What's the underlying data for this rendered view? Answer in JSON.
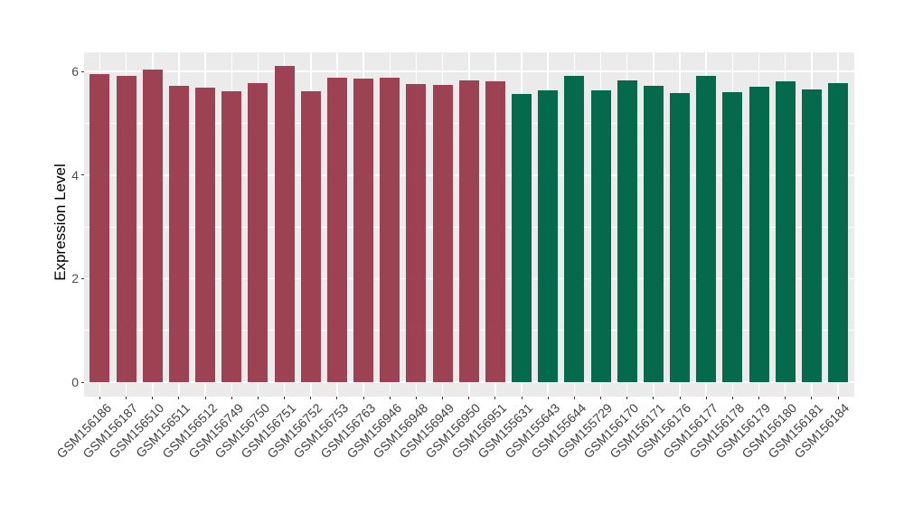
{
  "chart_data": {
    "type": "bar",
    "title": "",
    "xlabel": "",
    "ylabel": "Expression Level",
    "legend_position": "none",
    "grid": true,
    "categories": [
      "GSM156186",
      "GSM156187",
      "GSM156510",
      "GSM156511",
      "GSM156512",
      "GSM156749",
      "GSM156750",
      "GSM156751",
      "GSM156752",
      "GSM156753",
      "GSM156763",
      "GSM156946",
      "GSM156948",
      "GSM156949",
      "GSM156950",
      "GSM156951",
      "GSM155631",
      "GSM155643",
      "GSM155644",
      "GSM155729",
      "GSM156170",
      "GSM156171",
      "GSM156176",
      "GSM156177",
      "GSM156178",
      "GSM156179",
      "GSM156180",
      "GSM156181",
      "GSM156184"
    ],
    "values": [
      5.95,
      5.91,
      6.04,
      5.73,
      5.69,
      5.62,
      5.78,
      6.1,
      5.62,
      5.89,
      5.87,
      5.89,
      5.76,
      5.74,
      5.83,
      5.81,
      5.57,
      5.63,
      5.92,
      5.64,
      5.83,
      5.72,
      5.58,
      5.91,
      5.6,
      5.7,
      5.81,
      5.66,
      5.77
    ],
    "groups": [
      "A",
      "A",
      "A",
      "A",
      "A",
      "A",
      "A",
      "A",
      "A",
      "A",
      "A",
      "A",
      "A",
      "A",
      "A",
      "A",
      "B",
      "B",
      "B",
      "B",
      "B",
      "B",
      "B",
      "B",
      "B",
      "B",
      "B",
      "B",
      "B"
    ],
    "group_colors": {
      "A": "#9C4253",
      "B": "#05694B"
    },
    "yticks": [
      0,
      2,
      4,
      6
    ],
    "yticks_minor": [
      1,
      3,
      5
    ],
    "ylim": [
      -0.27,
      6.37
    ],
    "colors": {
      "figure_bg": "#FFFFFF",
      "panel_bg": "#EBEBEB",
      "grid": "#FFFFFF",
      "axis_text": "#4D4D4D",
      "tick_mark": "#333333",
      "title_text": "#000000"
    }
  }
}
